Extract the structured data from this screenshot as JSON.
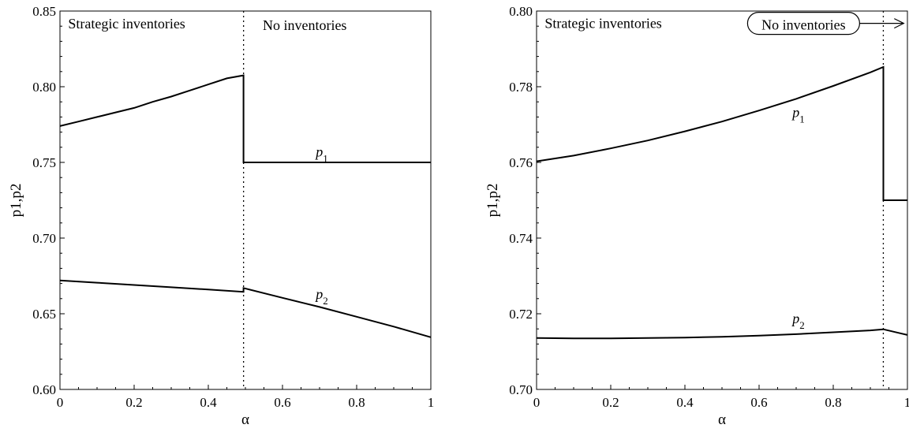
{
  "chart_data": [
    {
      "type": "line",
      "xlabel": "α",
      "ylabel": "p1,p2",
      "xlim": [
        0,
        1
      ],
      "ylim": [
        0.6,
        0.85
      ],
      "xticks": [
        0,
        0.2,
        0.4,
        0.6,
        0.8,
        1
      ],
      "xtick_labels": [
        "0",
        "0.2",
        "0.4",
        "0.6",
        "0.8",
        "1"
      ],
      "yticks": [
        0.6,
        0.65,
        0.7,
        0.75,
        0.8,
        0.85
      ],
      "ytick_labels": [
        "0.60",
        "0.65",
        "0.70",
        "0.75",
        "0.80",
        "0.85"
      ],
      "grid": false,
      "threshold_x": 0.495,
      "annotations": [
        {
          "text": "Strategic inventories",
          "x": 0.18,
          "y": 0.8385
        },
        {
          "text": "No inventories",
          "x": 0.66,
          "y": 0.8375
        }
      ],
      "series": [
        {
          "label": "p",
          "subscript": "1",
          "label_at": [
            0.69,
            0.754
          ],
          "x": [
            0,
            0.05,
            0.1,
            0.15,
            0.2,
            0.25,
            0.3,
            0.35,
            0.4,
            0.45,
            0.495,
            0.495,
            0.6,
            0.7,
            0.8,
            0.9,
            1
          ],
          "y": [
            0.774,
            0.777,
            0.78,
            0.783,
            0.786,
            0.79,
            0.7935,
            0.7975,
            0.8015,
            0.8055,
            0.8075,
            0.75,
            0.75,
            0.75,
            0.75,
            0.75,
            0.75
          ]
        },
        {
          "label": "p",
          "subscript": "2",
          "label_at": [
            0.69,
            0.66
          ],
          "x": [
            0,
            0.1,
            0.2,
            0.3,
            0.4,
            0.495,
            0.495,
            0.6,
            0.7,
            0.8,
            0.9,
            1
          ],
          "y": [
            0.672,
            0.6705,
            0.669,
            0.6675,
            0.666,
            0.6645,
            0.667,
            0.6605,
            0.6545,
            0.648,
            0.6415,
            0.6345
          ]
        }
      ]
    },
    {
      "type": "line",
      "xlabel": "α",
      "ylabel": "p1,p2",
      "xlim": [
        0,
        1
      ],
      "ylim": [
        0.7,
        0.8
      ],
      "xticks": [
        0,
        0.2,
        0.4,
        0.6,
        0.8,
        1
      ],
      "xtick_labels": [
        "0",
        "0.2",
        "0.4",
        "0.6",
        "0.8",
        "1"
      ],
      "yticks": [
        0.7,
        0.72,
        0.74,
        0.76,
        0.78,
        0.8
      ],
      "ytick_labels": [
        "0.70",
        "0.72",
        "0.74",
        "0.76",
        "0.78",
        "0.80"
      ],
      "grid": false,
      "threshold_x": 0.935,
      "annotations": [
        {
          "text": "Strategic inventories",
          "x": 0.18,
          "y": 0.7955
        }
      ],
      "boxed_annotation": {
        "text": "No inventories",
        "x": 0.72,
        "y": 0.7955,
        "arrow_to_x": 0.99
      },
      "series": [
        {
          "label": "p",
          "subscript": "1",
          "label_at": [
            0.69,
            0.772
          ],
          "x": [
            0,
            0.1,
            0.2,
            0.3,
            0.4,
            0.5,
            0.6,
            0.7,
            0.8,
            0.9,
            0.935,
            0.935,
            1
          ],
          "y": [
            0.7603,
            0.7618,
            0.7637,
            0.7658,
            0.7682,
            0.7708,
            0.7737,
            0.7768,
            0.7802,
            0.7838,
            0.7852,
            0.75,
            0.75
          ]
        },
        {
          "label": "p",
          "subscript": "2",
          "label_at": [
            0.69,
            0.7175
          ],
          "x": [
            0,
            0.1,
            0.2,
            0.3,
            0.4,
            0.5,
            0.6,
            0.7,
            0.8,
            0.9,
            0.935,
            1
          ],
          "y": [
            0.7136,
            0.7135,
            0.7135,
            0.7136,
            0.7137,
            0.7139,
            0.7142,
            0.7146,
            0.7151,
            0.7156,
            0.7159,
            0.7144
          ]
        }
      ]
    }
  ]
}
